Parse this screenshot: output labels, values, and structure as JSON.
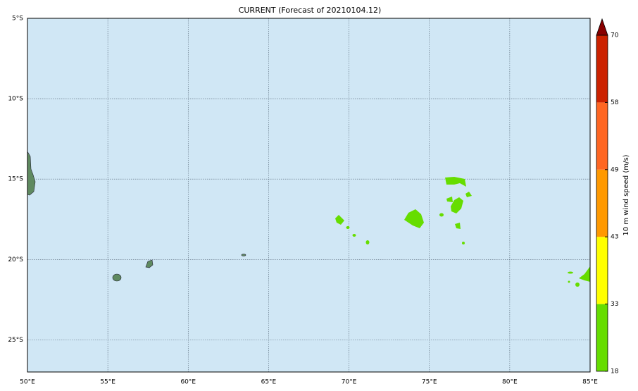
{
  "title": "CURRENT (Forecast of 20210104.12)",
  "map": {
    "xlim": [
      50,
      85
    ],
    "ylim": [
      -27,
      -5
    ],
    "xticks": [
      {
        "value": 50,
        "label": "50°E"
      },
      {
        "value": 55,
        "label": "55°E"
      },
      {
        "value": 60,
        "label": "60°E"
      },
      {
        "value": 65,
        "label": "65°E"
      },
      {
        "value": 70,
        "label": "70°E"
      },
      {
        "value": 75,
        "label": "75°E"
      },
      {
        "value": 80,
        "label": "80°E"
      },
      {
        "value": 85,
        "label": "85°E"
      }
    ],
    "yticks": [
      {
        "value": -5,
        "label": "5°S"
      },
      {
        "value": -10,
        "label": "10°S"
      },
      {
        "value": -15,
        "label": "15°S"
      },
      {
        "value": -20,
        "label": "20°S"
      },
      {
        "value": -25,
        "label": "25°S"
      }
    ],
    "grid": true
  },
  "colorbar": {
    "label": "10 m wind speed (m/s)",
    "levels": [
      18,
      33,
      43,
      49,
      58,
      70
    ],
    "colors": [
      "#66dd00",
      "#ffff00",
      "#ff9900",
      "#ff6622",
      "#cc2200"
    ],
    "extend_color": "#880000"
  }
}
